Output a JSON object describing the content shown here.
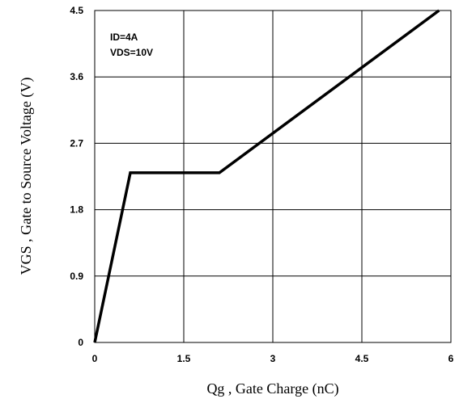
{
  "chart_data": {
    "type": "line",
    "xlabel": "Qg , Gate Charge (nC)",
    "ylabel": "VGS , Gate to Source Voltage (V)",
    "xlim": [
      0,
      6
    ],
    "ylim": [
      0,
      4.5
    ],
    "x_ticks": [
      "0",
      "1.5",
      "3",
      "4.5",
      "6"
    ],
    "y_ticks": [
      "0",
      "0.9",
      "1.8",
      "2.7",
      "3.6",
      "4.5"
    ],
    "grid": true,
    "annotations": [
      "ID=4A",
      "VDS=10V"
    ],
    "series": [
      {
        "x": [
          0,
          0.6,
          2.1,
          5.8
        ],
        "y": [
          0,
          2.3,
          2.3,
          4.5
        ]
      }
    ]
  }
}
